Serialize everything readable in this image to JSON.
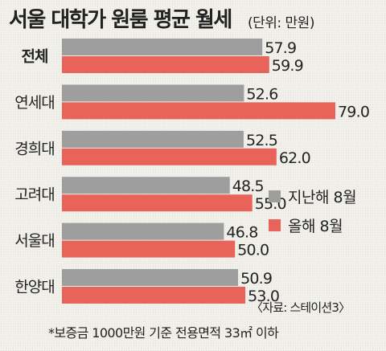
{
  "header": {
    "title": "서울 대학가 원룸 평균 월세",
    "unit": "(단위: 만원)"
  },
  "legend": {
    "items": [
      {
        "label": "지난해 8월",
        "color": "#9e9e9e"
      },
      {
        "label": "올해 8월",
        "color": "#e8645a"
      }
    ]
  },
  "source": "〈자료: 스테이션3〉",
  "footnote": "*보증금 1000만원 기준 전용면적 33㎡ 이하",
  "chart_data": {
    "type": "bar",
    "orientation": "horizontal",
    "title": "서울 대학가 원룸 평균 월세",
    "unit": "(단위: 만원)",
    "categories": [
      "전체",
      "연세대",
      "경희대",
      "고려대",
      "서울대",
      "한양대"
    ],
    "series": [
      {
        "name": "지난해 8월",
        "color": "#9e9e9e",
        "values": [
          57.9,
          52.6,
          52.5,
          48.5,
          46.8,
          50.9
        ],
        "labels": [
          "57.9",
          "52.6",
          "52.5",
          "48.5",
          "46.8",
          "50.9"
        ]
      },
      {
        "name": "올해 8월",
        "color": "#e8645a",
        "values": [
          59.9,
          79.0,
          62.0,
          55.0,
          50.0,
          53.0
        ],
        "labels": [
          "59.9",
          "79.0",
          "62.0",
          "55.0",
          "50.0",
          "53.0"
        ]
      }
    ],
    "emphasized_category": "전체",
    "legend_position": "right",
    "grid": false
  }
}
